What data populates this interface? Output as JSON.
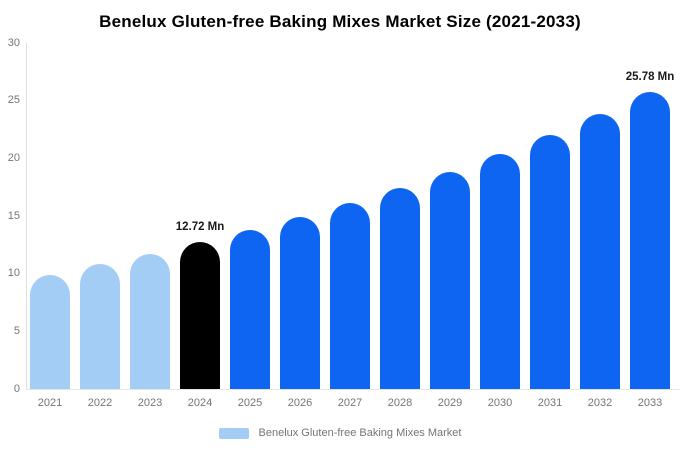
{
  "chart_data": {
    "type": "bar",
    "title": "Benelux Gluten-free Baking Mixes Market Size (2021-2033)",
    "categories": [
      "2021",
      "2022",
      "2023",
      "2024",
      "2025",
      "2026",
      "2027",
      "2028",
      "2029",
      "2030",
      "2031",
      "2032",
      "2033"
    ],
    "values": [
      9.9,
      10.8,
      11.7,
      12.72,
      13.76,
      14.88,
      16.1,
      17.41,
      18.83,
      20.37,
      22.03,
      23.83,
      25.78
    ],
    "unit": "Mn",
    "xlabel": "",
    "ylabel": "",
    "ylim": [
      0,
      30
    ],
    "y_ticks": [
      0,
      5,
      10,
      15,
      20,
      25,
      30
    ],
    "grid": false,
    "bar_colors": [
      "#a4cdf6",
      "#a4cdf6",
      "#a4cdf6",
      "#000000",
      "#0d65f2",
      "#0d65f2",
      "#0d65f2",
      "#0d65f2",
      "#0d65f2",
      "#0d65f2",
      "#0d65f2",
      "#0d65f2",
      "#0d65f2"
    ],
    "color_roles": {
      "historical": "#a4cdf6",
      "base_year": "#000000",
      "forecast": "#0d65f2"
    },
    "annotations": [
      {
        "category": "2024",
        "label": "12.72 Mn"
      },
      {
        "category": "2033",
        "label": "25.78 Mn"
      }
    ],
    "legend": {
      "position": "bottom",
      "entries": [
        {
          "label": "Benelux Gluten-free Baking Mixes Market",
          "color": "#a4cdf6"
        }
      ]
    },
    "axis_label_color": "#757575"
  }
}
